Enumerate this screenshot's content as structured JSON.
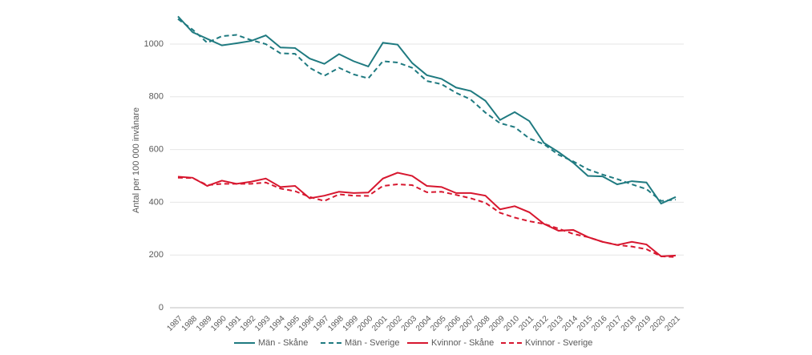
{
  "chart_data": {
    "type": "line",
    "y_label": "Antal per 100 000 invånare",
    "categories": [
      "1987",
      "1988",
      "1989",
      "1990",
      "1991",
      "1992",
      "1993",
      "1994",
      "1995",
      "1996",
      "1997",
      "1998",
      "1999",
      "2000",
      "2001",
      "2002",
      "2003",
      "2004",
      "2005",
      "2006",
      "2007",
      "2008",
      "2009",
      "2010",
      "2011",
      "2012",
      "2013",
      "2014",
      "2015",
      "2016",
      "2017",
      "2018",
      "2019",
      "2020",
      "2021"
    ],
    "series": [
      {
        "name": "Män - Skåne",
        "color": "#1f7a80",
        "style": "solid",
        "values": [
          1105,
          1045,
          1020,
          995,
          1003,
          1012,
          1033,
          987,
          985,
          945,
          925,
          962,
          935,
          915,
          1005,
          998,
          928,
          882,
          868,
          835,
          822,
          785,
          712,
          742,
          708,
          625,
          590,
          550,
          500,
          498,
          468,
          480,
          475,
          395,
          420
        ]
      },
      {
        "name": "Män - Sverige",
        "color": "#1f7a80",
        "style": "dashed",
        "values": [
          1095,
          1055,
          1005,
          1030,
          1035,
          1015,
          1000,
          965,
          963,
          910,
          880,
          910,
          885,
          870,
          935,
          930,
          910,
          860,
          848,
          815,
          790,
          740,
          700,
          685,
          642,
          620,
          580,
          555,
          525,
          505,
          488,
          468,
          450,
          405,
          410
        ]
      },
      {
        "name": "Kvinnor - Skåne",
        "color": "#d7172f",
        "style": "solid",
        "values": [
          497,
          493,
          462,
          482,
          470,
          478,
          490,
          458,
          462,
          415,
          425,
          440,
          435,
          437,
          490,
          512,
          500,
          462,
          458,
          435,
          435,
          425,
          373,
          385,
          362,
          318,
          292,
          295,
          268,
          250,
          238,
          250,
          240,
          195,
          198
        ]
      },
      {
        "name": "Kvinnor - Sverige",
        "color": "#d7172f",
        "style": "dashed",
        "values": [
          493,
          492,
          465,
          470,
          470,
          470,
          475,
          452,
          442,
          420,
          405,
          430,
          425,
          424,
          462,
          468,
          465,
          438,
          440,
          428,
          415,
          398,
          360,
          342,
          328,
          318,
          300,
          280,
          268,
          250,
          238,
          232,
          222,
          195,
          192
        ]
      }
    ],
    "ylim": [
      0,
      1120
    ],
    "yticks": [
      0,
      200,
      400,
      600,
      800,
      1000
    ],
    "grid": true,
    "legend": "bottom"
  }
}
